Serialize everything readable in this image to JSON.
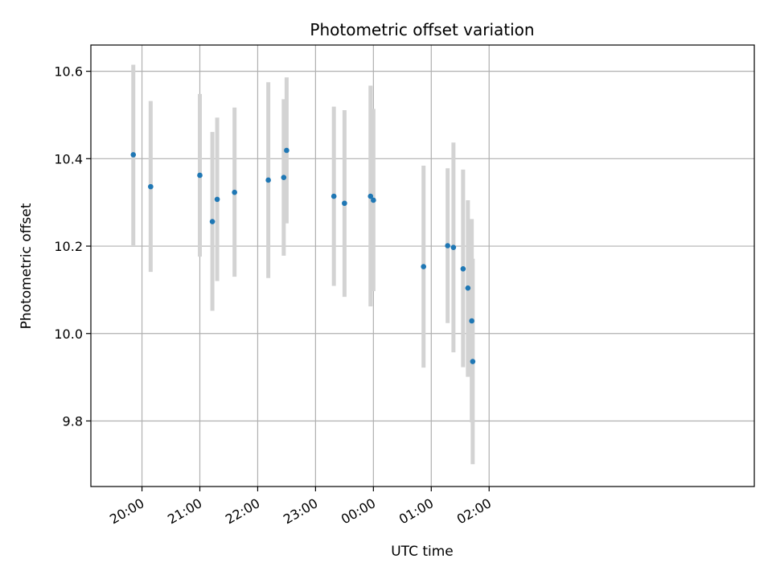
{
  "chart_data": {
    "type": "scatter",
    "title": "Photometric offset variation",
    "xlabel": "UTC time",
    "ylabel": "Photometric offset",
    "x_unit": "minutes from 20:00 UTC",
    "xlim": [
      -53,
      635
    ],
    "ylim": [
      9.65,
      10.66
    ],
    "x_ticks": [
      {
        "minutes": 0,
        "label": "20:00"
      },
      {
        "minutes": 60,
        "label": "21:00"
      },
      {
        "minutes": 120,
        "label": "22:00"
      },
      {
        "minutes": 180,
        "label": "23:00"
      },
      {
        "minutes": 240,
        "label": "00:00"
      },
      {
        "minutes": 300,
        "label": "01:00"
      },
      {
        "minutes": 360,
        "label": "02:00"
      }
    ],
    "y_ticks": [
      {
        "value": 9.8,
        "label": "9.8"
      },
      {
        "value": 10.0,
        "label": "10.0"
      },
      {
        "value": 10.2,
        "label": "10.2"
      },
      {
        "value": 10.4,
        "label": "10.4"
      },
      {
        "value": 10.6,
        "label": "10.6"
      }
    ],
    "grid": true,
    "colors": {
      "point": "#1f77b4",
      "errorbar": "#d3d3d3",
      "grid": "#b0b0b0"
    },
    "series": [
      {
        "points": [
          {
            "time": "19:51",
            "y": 10.409,
            "err_low": 10.202,
            "err_high": 10.615
          },
          {
            "time": "20:09",
            "y": 10.336,
            "err_low": 10.141,
            "err_high": 10.532
          },
          {
            "time": "21:00",
            "y": 10.362,
            "err_low": 10.176,
            "err_high": 10.548
          },
          {
            "time": "21:13",
            "y": 10.256,
            "err_low": 10.052,
            "err_high": 10.461
          },
          {
            "time": "21:18",
            "y": 10.307,
            "err_low": 10.12,
            "err_high": 10.494
          },
          {
            "time": "21:36",
            "y": 10.323,
            "err_low": 10.13,
            "err_high": 10.517
          },
          {
            "time": "22:11",
            "y": 10.351,
            "err_low": 10.127,
            "err_high": 10.575
          },
          {
            "time": "22:27",
            "y": 10.357,
            "err_low": 10.178,
            "err_high": 10.536
          },
          {
            "time": "22:30",
            "y": 10.419,
            "err_low": 10.252,
            "err_high": 10.586
          },
          {
            "time": "23:19",
            "y": 10.314,
            "err_low": 10.109,
            "err_high": 10.519
          },
          {
            "time": "23:30",
            "y": 10.298,
            "err_low": 10.084,
            "err_high": 10.511
          },
          {
            "time": "23:57",
            "y": 10.314,
            "err_low": 10.062,
            "err_high": 10.567
          },
          {
            "time": "00:00",
            "y": 10.305,
            "err_low": 10.097,
            "err_high": 10.514
          },
          {
            "time": "00:52",
            "y": 10.153,
            "err_low": 9.922,
            "err_high": 10.384
          },
          {
            "time": "01:17",
            "y": 10.201,
            "err_low": 10.024,
            "err_high": 10.378
          },
          {
            "time": "01:23",
            "y": 10.197,
            "err_low": 9.957,
            "err_high": 10.437
          },
          {
            "time": "01:33",
            "y": 10.148,
            "err_low": 9.923,
            "err_high": 10.375
          },
          {
            "time": "01:38",
            "y": 10.104,
            "err_low": 9.901,
            "err_high": 10.305
          },
          {
            "time": "01:42",
            "y": 10.029,
            "err_low": 9.797,
            "err_high": 10.262
          },
          {
            "time": "01:43",
            "y": 9.936,
            "err_low": 9.701,
            "err_high": 10.171
          }
        ]
      }
    ]
  }
}
